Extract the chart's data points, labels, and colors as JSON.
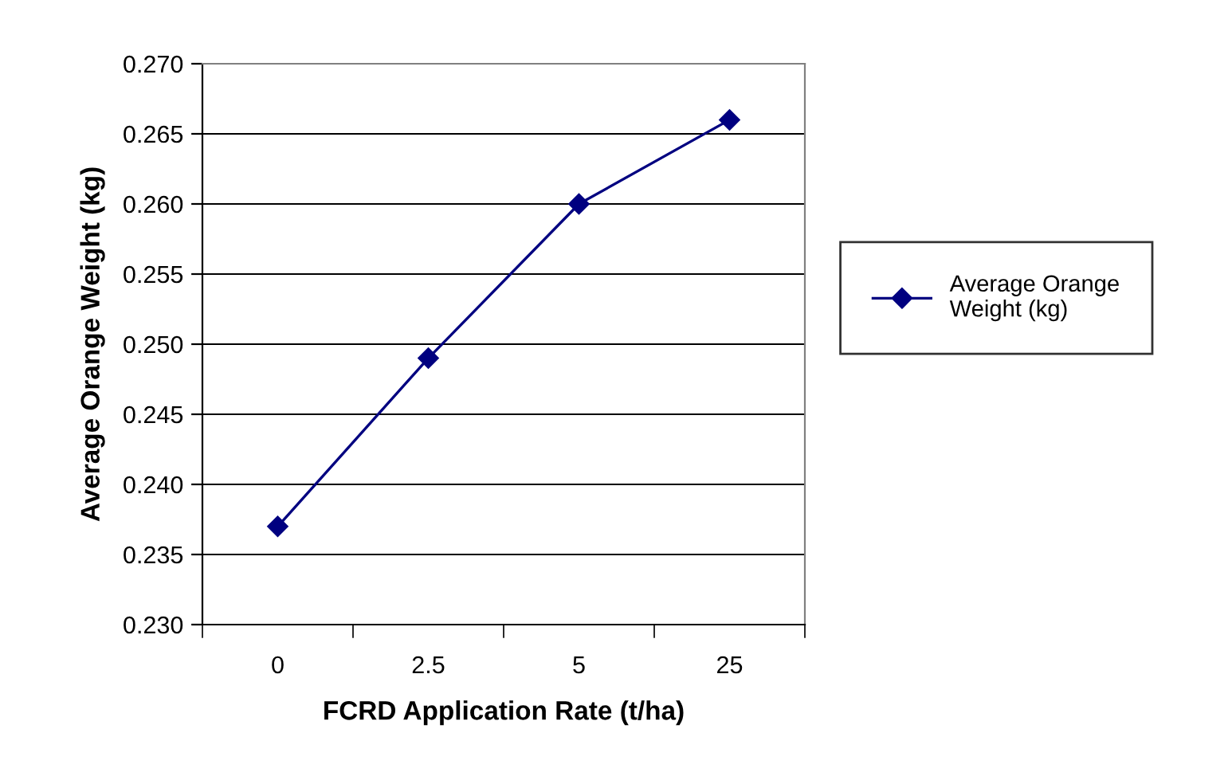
{
  "chart_data": {
    "type": "line",
    "xlabel": "FCRD Application Rate (t/ha)",
    "ylabel": "Average Orange Weight (kg)",
    "categories": [
      "0",
      "2.5",
      "5",
      "25"
    ],
    "series": [
      {
        "name": "Average Orange Weight (kg)",
        "color": "#000080",
        "values": [
          0.237,
          0.249,
          0.26,
          0.266
        ]
      }
    ],
    "ylim": [
      0.23,
      0.27
    ],
    "yticks": [
      {
        "value": 0.23,
        "label": "0.230"
      },
      {
        "value": 0.235,
        "label": "0.235"
      },
      {
        "value": 0.24,
        "label": "0.240"
      },
      {
        "value": 0.245,
        "label": "0.245"
      },
      {
        "value": 0.25,
        "label": "0.250"
      },
      {
        "value": 0.255,
        "label": "0.255"
      },
      {
        "value": 0.26,
        "label": "0.260"
      },
      {
        "value": 0.265,
        "label": "0.265"
      },
      {
        "value": 0.27,
        "label": "0.270"
      }
    ],
    "grid": "y",
    "legend": "right",
    "marker": "diamond",
    "line_style": "solid"
  }
}
